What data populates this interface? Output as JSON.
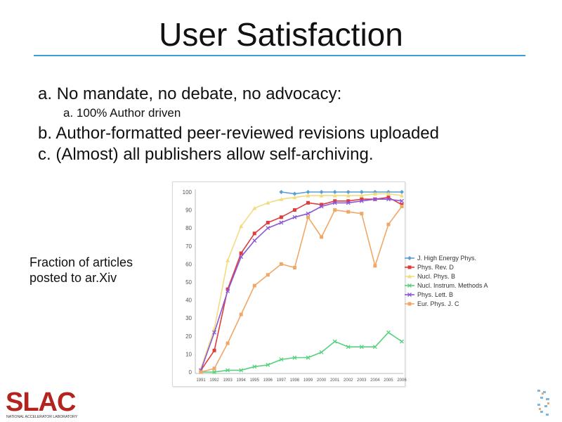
{
  "slide": {
    "title": "User Satisfaction",
    "bullets": [
      {
        "marker": "a.",
        "text": "No mandate, no debate, no advocacy:"
      },
      {
        "marker": "a.",
        "text": "100% Author driven"
      },
      {
        "marker": "b.",
        "text": "Author-formatted peer-reviewed revisions uploaded"
      },
      {
        "marker": "c.",
        "text": "(Almost) all publishers allow self-archiving."
      }
    ],
    "caption_lines": [
      "Fraction of articles",
      "posted to ar.Xiv"
    ],
    "logo_text": "SLAC",
    "logo_subtext": "NATIONAL ACCELERATOR LABORATORY",
    "accent_color": "#3aa0d6",
    "logo_color": "#b3241f"
  },
  "chart_data": {
    "type": "line",
    "x": [
      "1991",
      "1992",
      "1993",
      "1994",
      "1995",
      "1996",
      "1997",
      "1998",
      "1999",
      "2000",
      "2001",
      "2002",
      "2003",
      "2004",
      "2005",
      "2006"
    ],
    "y_ticks": [
      0,
      10,
      20,
      30,
      40,
      50,
      60,
      70,
      80,
      90,
      100
    ],
    "ylim": [
      0,
      100
    ],
    "grid": false,
    "legend_position": "right",
    "series": [
      {
        "name": "J. High Energy Phys.",
        "color": "#5a9fd4",
        "marker": "diamond",
        "values": [
          null,
          null,
          null,
          null,
          null,
          null,
          100,
          99,
          100,
          100,
          100,
          100,
          100,
          100,
          100,
          100
        ]
      },
      {
        "name": "Phys. Rev. D",
        "color": "#e03c3c",
        "marker": "square",
        "values": [
          1,
          12,
          46,
          66,
          77,
          83,
          86,
          90,
          94,
          93,
          95,
          95,
          96,
          96,
          97,
          93
        ]
      },
      {
        "name": "Nucl. Phys. B",
        "color": "#f2dc7e",
        "marker": "triangle",
        "values": [
          2,
          24,
          62,
          81,
          91,
          94,
          96,
          97,
          98,
          98,
          98,
          98,
          98,
          99,
          99,
          98
        ]
      },
      {
        "name": "Nucl. Instrum. Methods A",
        "color": "#56d17c",
        "marker": "x",
        "values": [
          0,
          0,
          1,
          1,
          3,
          4,
          7,
          8,
          8,
          11,
          17,
          14,
          14,
          14,
          22,
          17
        ]
      },
      {
        "name": "Phys. Lett. B",
        "color": "#8a58d6",
        "marker": "x",
        "values": [
          1,
          22,
          45,
          64,
          73,
          80,
          83,
          86,
          88,
          92,
          94,
          94,
          95,
          96,
          96,
          95
        ]
      },
      {
        "name": "Eur. Phys. J. C",
        "color": "#f0a868",
        "marker": "square",
        "values": [
          0,
          2,
          16,
          32,
          48,
          54,
          60,
          58,
          86,
          75,
          90,
          89,
          88,
          59,
          82,
          92
        ]
      }
    ]
  }
}
